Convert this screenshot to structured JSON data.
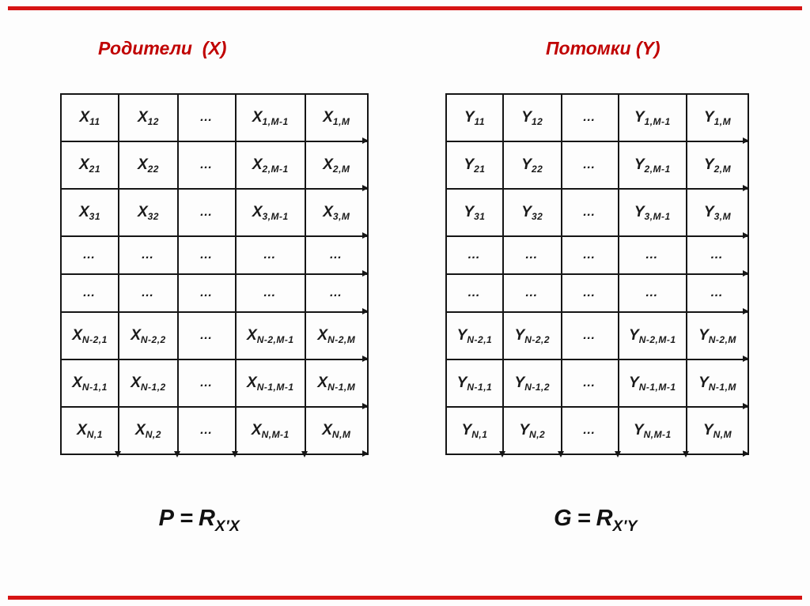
{
  "slide": {
    "colors": {
      "accent_red_titles": "#c00000",
      "edge_bar_red": "#d61414",
      "table_line_black": "#161616",
      "background": "#fdfdfd"
    }
  },
  "titles": {
    "left": "Родители  (X)",
    "right": "Потомки (Y)"
  },
  "tables": {
    "parents": {
      "symbol": "X",
      "rows": [
        [
          {
            "b": "X",
            "s": "11"
          },
          {
            "b": "X",
            "s": "12"
          },
          {
            "d": "…"
          },
          {
            "b": "X",
            "s": "1,M-1"
          },
          {
            "b": "X",
            "s": "1,M"
          }
        ],
        [
          {
            "b": "X",
            "s": "21"
          },
          {
            "b": "X",
            "s": "22"
          },
          {
            "d": "…"
          },
          {
            "b": "X",
            "s": "2,M-1"
          },
          {
            "b": "X",
            "s": "2,M"
          }
        ],
        [
          {
            "b": "X",
            "s": "31"
          },
          {
            "b": "X",
            "s": "32"
          },
          {
            "d": "…"
          },
          {
            "b": "X",
            "s": "3,M-1"
          },
          {
            "b": "X",
            "s": "3,M"
          }
        ],
        [
          {
            "d": "…"
          },
          {
            "d": "…"
          },
          {
            "d": "…"
          },
          {
            "d": "…"
          },
          {
            "d": "…"
          }
        ],
        [
          {
            "d": "…"
          },
          {
            "d": "…"
          },
          {
            "d": "…"
          },
          {
            "d": "…"
          },
          {
            "d": "…"
          }
        ],
        [
          {
            "b": "X",
            "s": "N-2,1"
          },
          {
            "b": "X",
            "s": "N-2,2"
          },
          {
            "d": "…"
          },
          {
            "b": "X",
            "s": "N-2,M-1"
          },
          {
            "b": "X",
            "s": "N-2,M"
          }
        ],
        [
          {
            "b": "X",
            "s": "N-1,1"
          },
          {
            "b": "X",
            "s": "N-1,2"
          },
          {
            "d": "…"
          },
          {
            "b": "X",
            "s": "N-1,M-1"
          },
          {
            "b": "X",
            "s": "N-1,M"
          }
        ],
        [
          {
            "b": "X",
            "s": "N,1"
          },
          {
            "b": "X",
            "s": "N,2"
          },
          {
            "d": "…"
          },
          {
            "b": "X",
            "s": "N,M-1"
          },
          {
            "b": "X",
            "s": "N,M"
          }
        ]
      ]
    },
    "offspring": {
      "symbol": "Y",
      "rows": [
        [
          {
            "b": "Y",
            "s": "11"
          },
          {
            "b": "Y",
            "s": "12"
          },
          {
            "d": "…"
          },
          {
            "b": "Y",
            "s": "1,M-1"
          },
          {
            "b": "Y",
            "s": "1,M"
          }
        ],
        [
          {
            "b": "Y",
            "s": "21"
          },
          {
            "b": "Y",
            "s": "22"
          },
          {
            "d": "…"
          },
          {
            "b": "Y",
            "s": "2,M-1"
          },
          {
            "b": "Y",
            "s": "2,M"
          }
        ],
        [
          {
            "b": "Y",
            "s": "31"
          },
          {
            "b": "Y",
            "s": "32"
          },
          {
            "d": "…"
          },
          {
            "b": "Y",
            "s": "3,M-1"
          },
          {
            "b": "Y",
            "s": "3,M"
          }
        ],
        [
          {
            "d": "…"
          },
          {
            "d": "…"
          },
          {
            "d": "…"
          },
          {
            "d": "…"
          },
          {
            "d": "…"
          }
        ],
        [
          {
            "d": "…"
          },
          {
            "d": "…"
          },
          {
            "d": "…"
          },
          {
            "d": "…"
          },
          {
            "d": "…"
          }
        ],
        [
          {
            "b": "Y",
            "s": "N-2,1"
          },
          {
            "b": "Y",
            "s": "N-2,2"
          },
          {
            "d": "…"
          },
          {
            "b": "Y",
            "s": "N-2,M-1"
          },
          {
            "b": "Y",
            "s": "N-2,M"
          }
        ],
        [
          {
            "b": "Y",
            "s": "N-1,1"
          },
          {
            "b": "Y",
            "s": "N-1,2"
          },
          {
            "d": "…"
          },
          {
            "b": "Y",
            "s": "N-1,M-1"
          },
          {
            "b": "Y",
            "s": "N-1,M"
          }
        ],
        [
          {
            "b": "Y",
            "s": "N,1"
          },
          {
            "b": "Y",
            "s": "N,2"
          },
          {
            "d": "…"
          },
          {
            "b": "Y",
            "s": "N,M-1"
          },
          {
            "b": "Y",
            "s": "N,M"
          }
        ]
      ]
    }
  },
  "formulas": {
    "left": {
      "lhs": "P",
      "eq": "=",
      "base": "R",
      "sub": "X′X"
    },
    "right": {
      "lhs": "G",
      "eq": "=",
      "base": "R",
      "sub": "X′Y"
    }
  }
}
